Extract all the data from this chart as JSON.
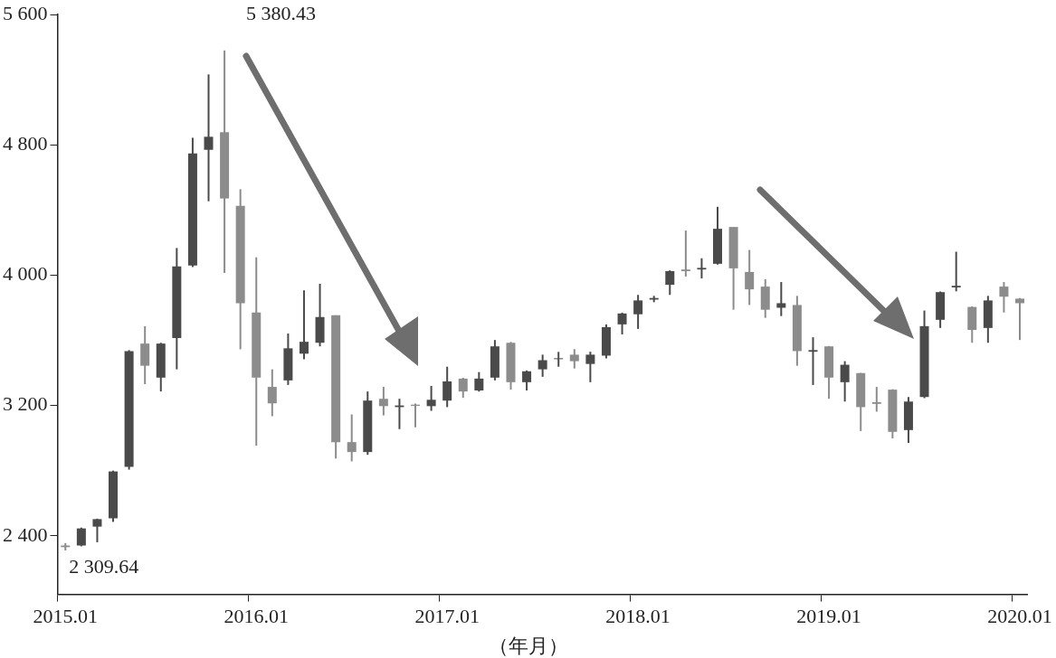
{
  "chart_data": {
    "type": "candlestick",
    "xlabel": "（年月）",
    "categories": [
      "2015.01",
      null,
      null,
      null,
      null,
      null,
      null,
      null,
      null,
      null,
      null,
      null,
      "2016.01",
      null,
      null,
      null,
      null,
      null,
      null,
      null,
      null,
      null,
      null,
      null,
      "2017.01",
      null,
      null,
      null,
      null,
      null,
      null,
      null,
      null,
      null,
      null,
      null,
      "2018.01",
      null,
      null,
      null,
      null,
      null,
      null,
      null,
      null,
      null,
      null,
      null,
      "2019.01",
      null,
      null,
      null,
      null,
      null,
      null,
      null,
      null,
      null,
      null,
      null,
      "2020.01"
    ],
    "ohlc": [
      [
        2340,
        2355,
        2309.64,
        2330
      ],
      [
        2340,
        2450,
        2335,
        2445
      ],
      [
        2456,
        2505,
        2360,
        2502
      ],
      [
        2507,
        2800,
        2485,
        2795
      ],
      [
        2823,
        3540,
        2806,
        3534
      ],
      [
        3580,
        3687,
        3331,
        3444
      ],
      [
        3371,
        3585,
        3286,
        3580
      ],
      [
        3614,
        4167,
        3422,
        4054
      ],
      [
        4059,
        4844,
        4050,
        4748
      ],
      [
        4770,
        5233,
        4454,
        4850
      ],
      [
        4878,
        5380.43,
        4014,
        4471
      ],
      [
        4426,
        4528,
        3545,
        3828
      ],
      [
        3771,
        4110,
        2953,
        3371
      ],
      [
        3314,
        3422,
        3134,
        3213
      ],
      [
        3354,
        3642,
        3326,
        3551
      ],
      [
        3518,
        3907,
        3484,
        3591
      ],
      [
        3585,
        3947,
        3563,
        3743
      ],
      [
        3754,
        3754,
        2874,
        2975
      ],
      [
        2975,
        3145,
        2857,
        2914
      ],
      [
        2914,
        3286,
        2897,
        3230
      ],
      [
        3241,
        3314,
        3139,
        3196
      ],
      [
        3190,
        3241,
        3055,
        3200
      ],
      [
        3205,
        3212,
        3066,
        3198
      ],
      [
        3196,
        3320,
        3167,
        3235
      ],
      [
        3230,
        3438,
        3190,
        3348
      ],
      [
        3365,
        3370,
        3247,
        3286
      ],
      [
        3292,
        3405,
        3285,
        3365
      ],
      [
        3371,
        3602,
        3354,
        3563
      ],
      [
        3585,
        3590,
        3297,
        3343
      ],
      [
        3343,
        3415,
        3292,
        3410
      ],
      [
        3422,
        3512,
        3376,
        3478
      ],
      [
        3485,
        3529,
        3438,
        3490
      ],
      [
        3512,
        3546,
        3427,
        3472
      ],
      [
        3455,
        3530,
        3343,
        3512
      ],
      [
        3506,
        3698,
        3489,
        3681
      ],
      [
        3698,
        3770,
        3636,
        3765
      ],
      [
        3760,
        3879,
        3670,
        3845
      ],
      [
        3850,
        3873,
        3834,
        3860
      ],
      [
        3941,
        4030,
        3879,
        4025
      ],
      [
        4035,
        4274,
        3992,
        4025
      ],
      [
        4035,
        4104,
        3980,
        4045
      ],
      [
        4070,
        4420,
        4065,
        4285
      ],
      [
        4296,
        4296,
        3788,
        4042
      ],
      [
        4020,
        4155,
        3817,
        3913
      ],
      [
        3930,
        3975,
        3738,
        3788
      ],
      [
        3800,
        3958,
        3749,
        3828
      ],
      [
        3817,
        3873,
        3444,
        3534
      ],
      [
        3530,
        3619,
        3326,
        3540
      ],
      [
        3563,
        3565,
        3241,
        3371
      ],
      [
        3343,
        3472,
        3224,
        3450
      ],
      [
        3399,
        3400,
        3043,
        3190
      ],
      [
        3220,
        3314,
        3162,
        3210
      ],
      [
        3297,
        3300,
        2998,
        3038
      ],
      [
        3049,
        3252,
        2970,
        3224
      ],
      [
        3252,
        3783,
        3245,
        3687
      ],
      [
        3726,
        3900,
        3676,
        3896
      ],
      [
        3925,
        4144,
        3901,
        3935
      ],
      [
        3805,
        3808,
        3585,
        3664
      ],
      [
        3676,
        3873,
        3585,
        3845
      ],
      [
        3930,
        3958,
        3771,
        3868
      ],
      [
        3856,
        3860,
        3602,
        3828
      ]
    ],
    "colors": [
      "#8c8c8c",
      "#4a4a4a",
      "#4a4a4a",
      "#4a4a4a",
      "#4a4a4a",
      "#8c8c8c",
      "#4a4a4a",
      "#4a4a4a",
      "#4a4a4a",
      "#4a4a4a",
      "#8c8c8c",
      "#8c8c8c",
      "#8c8c8c",
      "#8c8c8c",
      "#4a4a4a",
      "#4a4a4a",
      "#4a4a4a",
      "#8c8c8c",
      "#8c8c8c",
      "#4a4a4a",
      "#8c8c8c",
      "#4a4a4a",
      "#8c8c8c",
      "#4a4a4a",
      "#4a4a4a",
      "#8c8c8c",
      "#4a4a4a",
      "#4a4a4a",
      "#8c8c8c",
      "#4a4a4a",
      "#4a4a4a",
      "#4a4a4a",
      "#8c8c8c",
      "#4a4a4a",
      "#4a4a4a",
      "#4a4a4a",
      "#4a4a4a",
      "#4a4a4a",
      "#4a4a4a",
      "#8c8c8c",
      "#4a4a4a",
      "#4a4a4a",
      "#8c8c8c",
      "#8c8c8c",
      "#8c8c8c",
      "#4a4a4a",
      "#8c8c8c",
      "#4a4a4a",
      "#8c8c8c",
      "#4a4a4a",
      "#8c8c8c",
      "#8c8c8c",
      "#8c8c8c",
      "#4a4a4a",
      "#4a4a4a",
      "#4a4a4a",
      "#4a4a4a",
      "#8c8c8c",
      "#4a4a4a",
      "#8c8c8c",
      "#8c8c8c"
    ],
    "ylim": [
      2040,
      5600
    ],
    "yticks": [
      {
        "value": 2400,
        "label": "2 400"
      },
      {
        "value": 3200,
        "label": "3 200"
      },
      {
        "value": 4000,
        "label": "4 000"
      },
      {
        "value": 4800,
        "label": "4 800"
      },
      {
        "value": 5600,
        "label": "5 600"
      }
    ],
    "annotations": [
      "5 380.43",
      {
        "text": "2 309.64",
        "x": "2015.01",
        "y": 2309.64
      }
    ]
  }
}
